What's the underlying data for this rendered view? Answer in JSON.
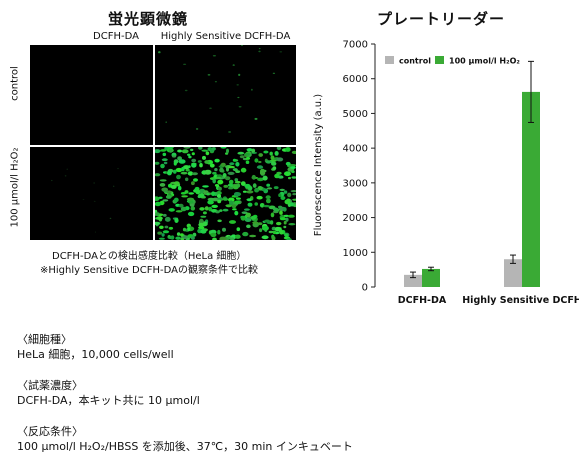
{
  "micro": {
    "title": "蛍光顕微鏡",
    "col_headers": [
      "DCFH-DA",
      "Highly Sensitive DCFH-DA"
    ],
    "row_headers": [
      "control",
      "100 μmol/l H₂O₂"
    ],
    "caption_line1": "DCFH-DAとの検出感度比較（HeLa 細胞）",
    "caption_line2": "※Highly Sensitive DCFH-DAの観察条件で比較"
  },
  "chart_title": "プレートリーダー",
  "chart_data": {
    "type": "bar",
    "categories": [
      "DCFH-DA",
      "Highly Sensitive DCFH"
    ],
    "series": [
      {
        "name": "control",
        "values": [
          350,
          800
        ],
        "errors": [
          80,
          120
        ],
        "color": "#b5b5b5"
      },
      {
        "name": "100 μmol/l H₂O₂",
        "values": [
          520,
          5620
        ],
        "errors": [
          50,
          880
        ],
        "color": "#3aaa35"
      }
    ],
    "ylabel": "Fluorescence Intensity (a.u.)",
    "ylim": [
      0,
      7000
    ],
    "yticks": [
      0,
      1000,
      2000,
      3000,
      4000,
      5000,
      6000,
      7000
    ],
    "legend": "top-left",
    "grid": false
  },
  "conditions": [
    {
      "heading": "〈細胞種〉",
      "text": "HeLa 細胞，10,000 cells/well"
    },
    {
      "heading": "〈試薬濃度〉",
      "text": "DCFH-DA，本キット共に 10 μmol/l"
    },
    {
      "heading": "〈反応条件〉",
      "text": "100 μmol/l H₂O₂/HBSS を添加後、37℃，30 min インキュベート"
    }
  ]
}
